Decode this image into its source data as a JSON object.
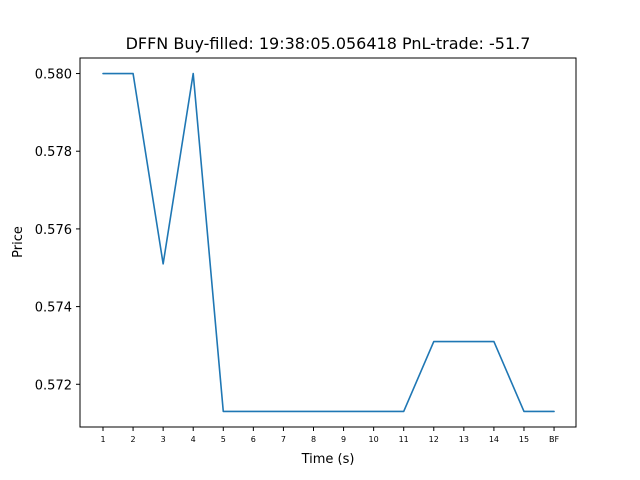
{
  "chart_data": {
    "type": "line",
    "title": "DFFN  Buy-filled:  19:38:05.056418  PnL-trade:  -51.7",
    "xlabel": "Time (s)",
    "ylabel": "Price",
    "categories": [
      "1",
      "2",
      "3",
      "4",
      "5",
      "6",
      "7",
      "8",
      "9",
      "10",
      "11",
      "12",
      "13",
      "14",
      "15",
      "BF"
    ],
    "series": [
      {
        "values": [
          0.58,
          0.58,
          0.5751,
          0.58,
          0.5713,
          0.5713,
          0.5713,
          0.5713,
          0.5713,
          0.5713,
          0.5713,
          0.5731,
          0.5731,
          0.5731,
          0.5713,
          0.5713
        ],
        "color": "#1f77b4"
      }
    ],
    "ylim": [
      0.5709,
      0.5804
    ],
    "yticks": [
      0.572,
      0.574,
      0.576,
      0.578,
      0.58
    ],
    "ytick_labels": [
      "0.572",
      "0.574",
      "0.576",
      "0.578",
      "0.580"
    ],
    "grid": false,
    "legend": "none"
  }
}
